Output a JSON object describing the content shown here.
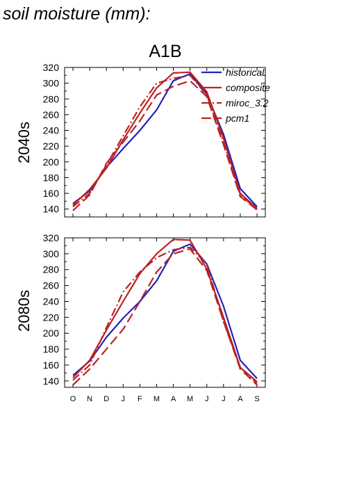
{
  "page": {
    "title": "soil moisture (mm):",
    "scenario": "A1B"
  },
  "colors": {
    "historical": "#2222bb",
    "red": "#bb2222"
  },
  "legend": [
    "historical",
    "composite",
    "miroc_3.2",
    "pcm1"
  ],
  "chart_data": [
    {
      "type": "line",
      "row_label": "2040s",
      "categories": [
        "O",
        "N",
        "D",
        "J",
        "F",
        "M",
        "A",
        "M",
        "J",
        "J",
        "A",
        "S"
      ],
      "ylim": [
        130,
        320
      ],
      "yticks": [
        140,
        160,
        180,
        200,
        220,
        240,
        260,
        280,
        300,
        320
      ],
      "series": [
        {
          "name": "historical",
          "values": [
            147,
            163,
            193,
            217,
            240,
            266,
            303,
            312,
            286,
            235,
            166,
            143
          ]
        },
        {
          "name": "composite",
          "values": [
            145,
            165,
            192,
            228,
            262,
            294,
            313,
            314,
            289,
            230,
            160,
            141
          ]
        },
        {
          "name": "miroc_3.2",
          "values": [
            143,
            160,
            196,
            233,
            270,
            300,
            306,
            310,
            285,
            225,
            158,
            140
          ]
        },
        {
          "name": "pcm1",
          "values": [
            138,
            158,
            198,
            225,
            252,
            285,
            296,
            303,
            283,
            222,
            156,
            139
          ]
        }
      ]
    },
    {
      "type": "line",
      "row_label": "2080s",
      "categories": [
        "O",
        "N",
        "D",
        "J",
        "F",
        "M",
        "A",
        "M",
        "J",
        "J",
        "A",
        "S"
      ],
      "ylim": [
        132,
        320
      ],
      "yticks": [
        140,
        160,
        180,
        200,
        220,
        240,
        260,
        280,
        300,
        320
      ],
      "series": [
        {
          "name": "historical",
          "values": [
            147,
            165,
            195,
            219,
            240,
            266,
            303,
            312,
            287,
            234,
            166,
            143
          ]
        },
        {
          "name": "composite",
          "values": [
            144,
            166,
            204,
            240,
            275,
            300,
            318,
            317,
            281,
            220,
            157,
            139
          ]
        },
        {
          "name": "miroc_3.2",
          "values": [
            141,
            160,
            207,
            252,
            277,
            295,
            305,
            308,
            287,
            215,
            157,
            137
          ]
        },
        {
          "name": "pcm1",
          "values": [
            135,
            155,
            180,
            205,
            240,
            277,
            300,
            306,
            279,
            215,
            155,
            135
          ]
        }
      ]
    }
  ]
}
